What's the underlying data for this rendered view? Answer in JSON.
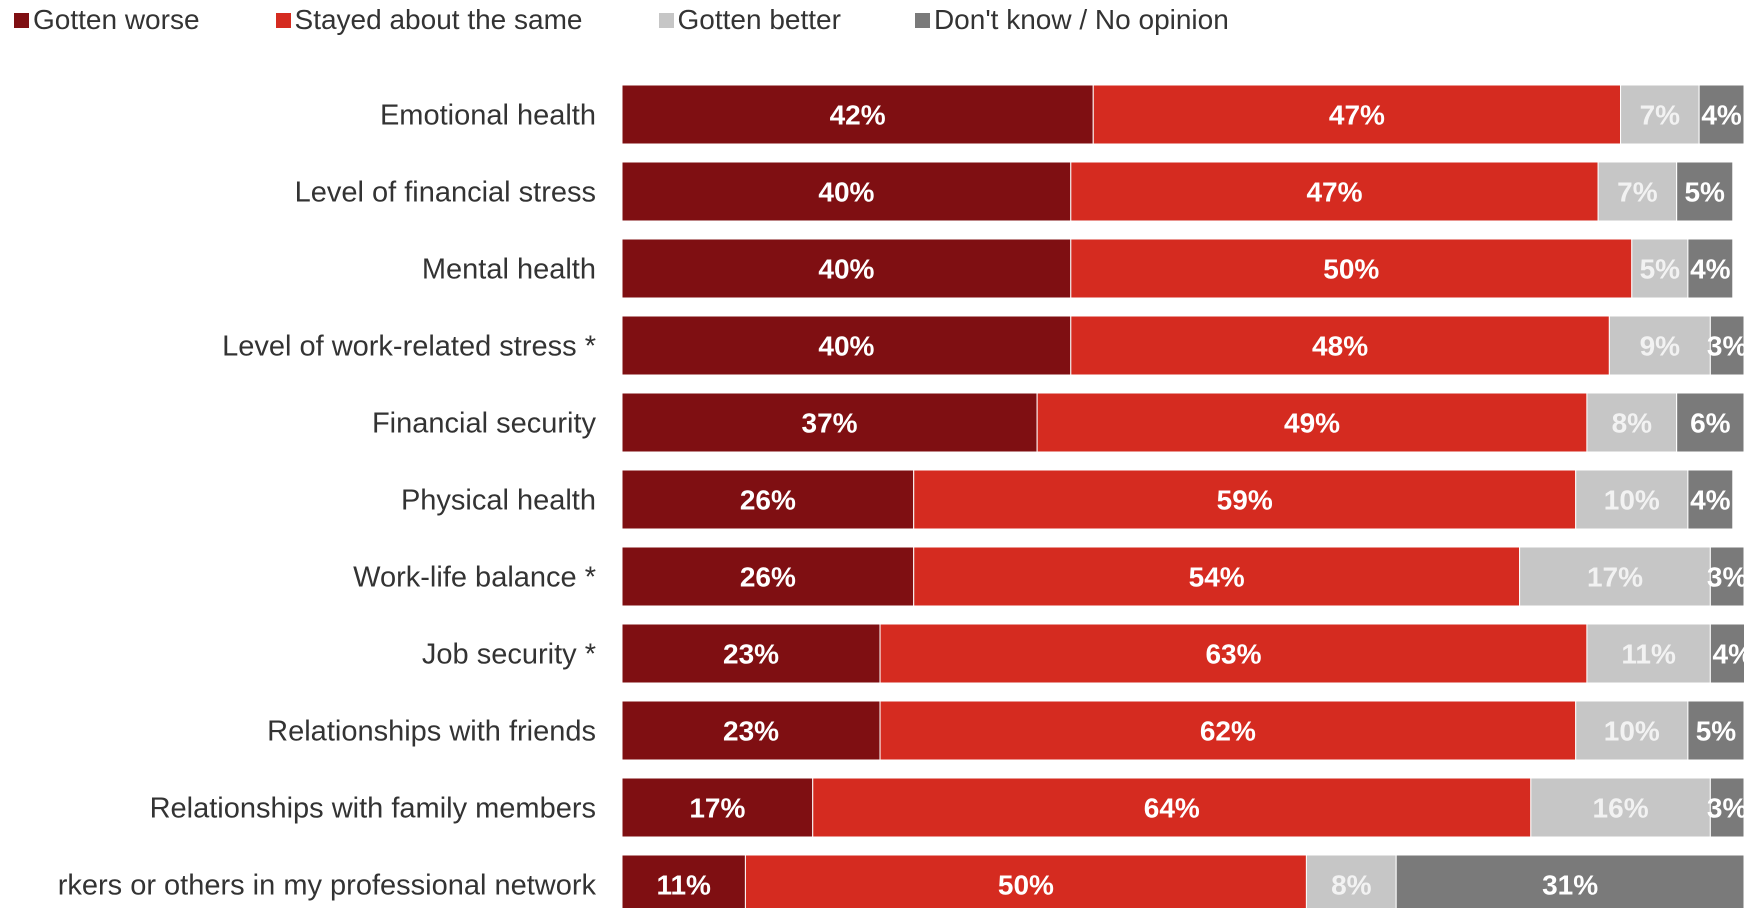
{
  "legend": {
    "items": [
      {
        "label": "Gotten worse",
        "color": "#7f0f12"
      },
      {
        "label": "Stayed about the same",
        "color": "#d52b20"
      },
      {
        "label": "Gotten better",
        "color": "#c6c6c6"
      },
      {
        "label": "Don't know / No opinion",
        "color": "#7a7a7a"
      }
    ]
  },
  "chart_data": {
    "type": "bar",
    "orientation": "horizontal",
    "stacked": true,
    "categories": [
      "Emotional health",
      "Level of financial stress",
      "Mental health",
      "Level of work-related stress *",
      "Financial security",
      "Physical health",
      "Work-life balance *",
      "Job security *",
      "Relationships with friends",
      "Relationships with family members",
      "rkers or others in my professional network"
    ],
    "series": [
      {
        "name": "Gotten worse",
        "color": "#7f0f12",
        "values": [
          42,
          40,
          40,
          40,
          37,
          26,
          26,
          23,
          23,
          17,
          11
        ]
      },
      {
        "name": "Stayed about the same",
        "color": "#d52b20",
        "values": [
          47,
          47,
          50,
          48,
          49,
          59,
          54,
          63,
          62,
          64,
          50
        ]
      },
      {
        "name": "Gotten better",
        "color": "#c6c6c6",
        "values": [
          7,
          7,
          5,
          9,
          8,
          10,
          17,
          11,
          10,
          16,
          8
        ]
      },
      {
        "name": "Don't know / No opinion",
        "color": "#7a7a7a",
        "values": [
          4,
          5,
          4,
          3,
          6,
          4,
          3,
          4,
          5,
          3,
          31
        ]
      }
    ],
    "value_suffix": "%",
    "xlim": [
      0,
      100
    ],
    "legend_position": "top-left"
  }
}
